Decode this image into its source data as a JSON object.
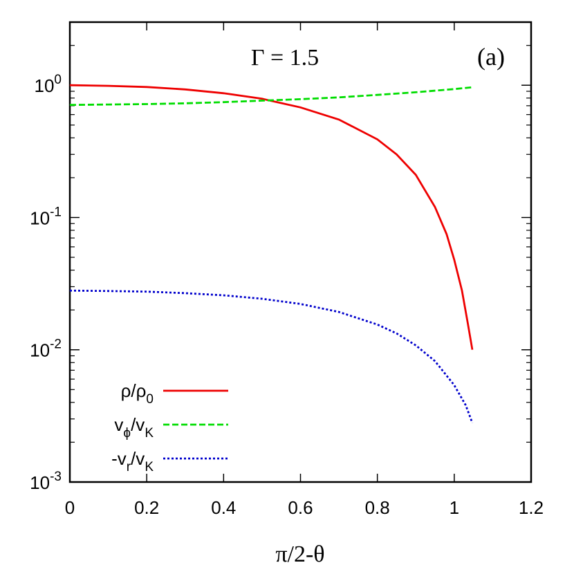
{
  "chart_data": {
    "type": "line",
    "x_scale": "linear",
    "y_scale": "log",
    "xlim": [
      0,
      1.2
    ],
    "ylim": [
      0.001,
      3
    ],
    "xticks": [
      {
        "value": 0,
        "label": "0"
      },
      {
        "value": 0.2,
        "label": "0.2"
      },
      {
        "value": 0.4,
        "label": "0.4"
      },
      {
        "value": 0.6,
        "label": "0.6"
      },
      {
        "value": 0.8,
        "label": "0.8"
      },
      {
        "value": 1.0,
        "label": "1"
      },
      {
        "value": 1.2,
        "label": "1.2"
      }
    ],
    "yticks": [
      {
        "value": 1,
        "base": "10",
        "exp": "0"
      },
      {
        "value": 0.1,
        "base": "10",
        "exp": "-1"
      },
      {
        "value": 0.01,
        "base": "10",
        "exp": "-2"
      },
      {
        "value": 0.001,
        "base": "10",
        "exp": "-3"
      }
    ],
    "xlabel": "π/2-θ",
    "annotation_gamma": "Γ = 1.5",
    "annotation_panel": "(a)",
    "grid": false,
    "legend_position": "bottom-left",
    "series": [
      {
        "name_main": "ρ/ρ",
        "name_sub": "0",
        "color": "#ee0000",
        "dash": "solid",
        "x": [
          0,
          0.1,
          0.2,
          0.3,
          0.4,
          0.5,
          0.6,
          0.7,
          0.8,
          0.85,
          0.9,
          0.95,
          0.98,
          1.0,
          1.02,
          1.035,
          1.047
        ],
        "y": [
          1.0,
          0.99,
          0.97,
          0.93,
          0.87,
          0.79,
          0.68,
          0.55,
          0.39,
          0.3,
          0.21,
          0.12,
          0.075,
          0.048,
          0.028,
          0.016,
          0.01
        ]
      },
      {
        "name_main": "v",
        "name_sub": "ϕ",
        "name_mid": "/v",
        "name_sub2": "K",
        "color": "#00dd00",
        "dash": "dashed",
        "x": [
          0,
          0.1,
          0.2,
          0.3,
          0.4,
          0.5,
          0.6,
          0.7,
          0.8,
          0.9,
          1.0,
          1.047
        ],
        "y": [
          0.71,
          0.715,
          0.72,
          0.73,
          0.745,
          0.765,
          0.785,
          0.81,
          0.845,
          0.885,
          0.935,
          0.965
        ]
      },
      {
        "name_main": "-v",
        "name_sub": "r",
        "name_mid": "/v",
        "name_sub2": "K",
        "color": "#0000cc",
        "dash": "dotted",
        "x": [
          0,
          0.1,
          0.2,
          0.3,
          0.4,
          0.5,
          0.6,
          0.7,
          0.8,
          0.85,
          0.9,
          0.95,
          1.0,
          1.03,
          1.047
        ],
        "y": [
          0.028,
          0.0278,
          0.0275,
          0.0268,
          0.0258,
          0.0243,
          0.0222,
          0.0193,
          0.0155,
          0.0133,
          0.0108,
          0.0082,
          0.0054,
          0.0038,
          0.0028
        ]
      }
    ]
  }
}
